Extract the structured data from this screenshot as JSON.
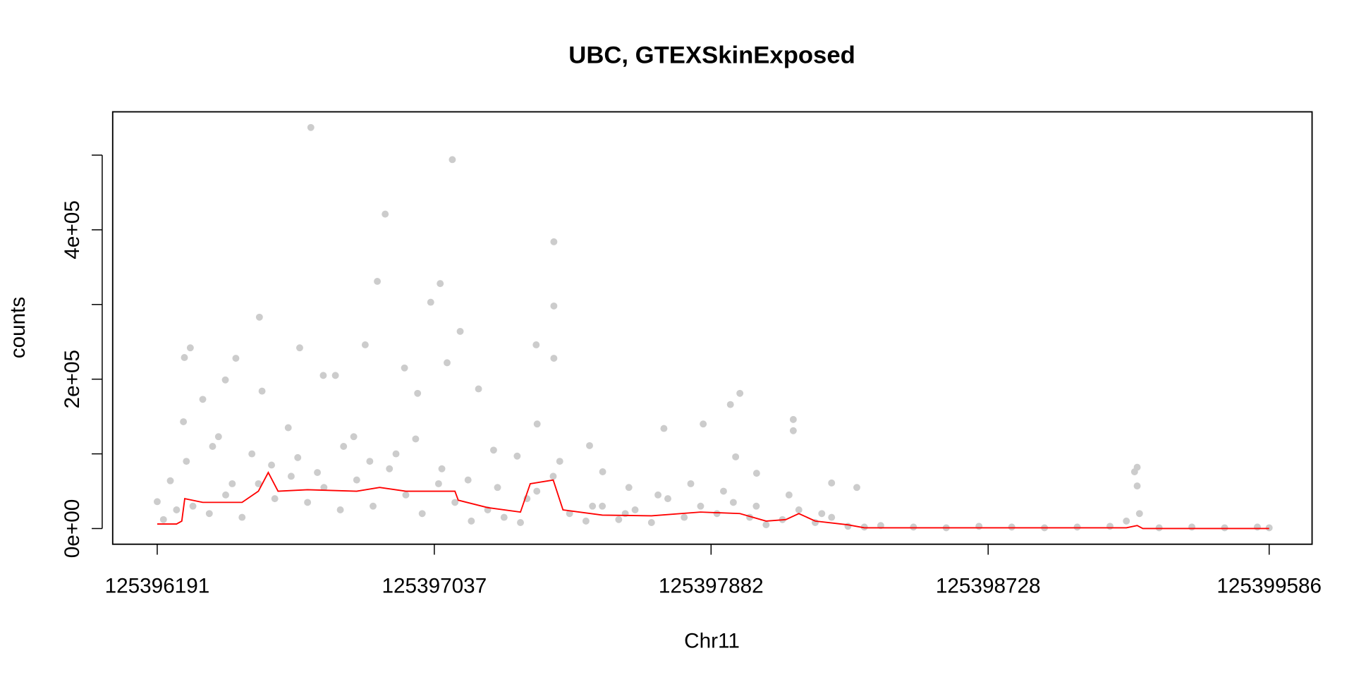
{
  "chart_data": {
    "type": "scatter",
    "title": "UBC, GTEXSkinExposed",
    "xlabel": "Chr11",
    "ylabel": "counts",
    "color": "#cccccc",
    "xlim": [
      125396055,
      125399717
    ],
    "ylim": [
      -21000,
      558000
    ],
    "xticks": [
      125396191,
      125397037,
      125397882,
      125398728,
      125399586
    ],
    "yticks": [
      {
        "value": 0,
        "label": "0e+00"
      },
      {
        "value": 100000,
        "label": null
      },
      {
        "value": 200000,
        "label": "2e+05"
      },
      {
        "value": 300000,
        "label": null
      },
      {
        "value": 400000,
        "label": "4e+05"
      },
      {
        "value": 500000,
        "label": null
      }
    ],
    "x": [
      125396660,
      125397092,
      125396887,
      125397402,
      125396863,
      125397055,
      125397026,
      125397402,
      125396503,
      125397116,
      125396626,
      125396292,
      125396431,
      125396274,
      125396826,
      125397348,
      125397402,
      125397076,
      125396946,
      125396698,
      125396735,
      125396399,
      125397172,
      125397970,
      125397941,
      125398133,
      125398133,
      125397738,
      125397858,
      125397351,
      125396986,
      125396511,
      125396330,
      125396271,
      125399183,
      125399175,
      125399183,
      125398327,
      125398250,
      125398021,
      125397957,
      125397551,
      125397511,
      125397631,
      125397290,
      125397218,
      125396791,
      125396591,
      125396378,
      125396231,
      125396191,
      125396210,
      125396250,
      125396300,
      125396350,
      125396400,
      125396450,
      125396500,
      125396550,
      125396600,
      125396650,
      125396700,
      125396750,
      125396800,
      125396850,
      125396900,
      125396950,
      125397000,
      125397050,
      125397100,
      125397150,
      125397200,
      125397250,
      125397300,
      125397350,
      125397400,
      125397450,
      125397500,
      125397550,
      125397600,
      125397650,
      125397700,
      125397750,
      125397800,
      125397850,
      125397900,
      125397950,
      125398000,
      125398050,
      125398100,
      125398150,
      125398200,
      125398250,
      125398300,
      125398350,
      125398400,
      125398500,
      125398600,
      125398700,
      125398800,
      125398900,
      125399000,
      125399100,
      125399150,
      125399190,
      125399250,
      125399350,
      125399450,
      125399550,
      125399586,
      125396280,
      125396360,
      125396420,
      125396480,
      125396540,
      125396620,
      125396680,
      125396760,
      125396840,
      125396920,
      125396980,
      125397060,
      125397140,
      125397230,
      125397320,
      125397420,
      125397520,
      125397620,
      125397720,
      125397820,
      125397920,
      125398020,
      125398120,
      125398220
    ],
    "values": [
      537000,
      494000,
      421000,
      384000,
      331000,
      328000,
      303000,
      298000,
      283000,
      264000,
      242000,
      242000,
      228000,
      229000,
      246000,
      246000,
      228000,
      222000,
      215000,
      205000,
      205000,
      199000,
      187000,
      181000,
      166000,
      146000,
      131000,
      134000,
      140000,
      140000,
      181000,
      184000,
      173000,
      143000,
      82000,
      76000,
      57000,
      55000,
      61000,
      74000,
      96000,
      76000,
      111000,
      55000,
      97000,
      105000,
      123000,
      135000,
      123000,
      64000,
      36000,
      12000,
      25000,
      30000,
      20000,
      45000,
      15000,
      60000,
      40000,
      70000,
      35000,
      55000,
      25000,
      65000,
      30000,
      80000,
      45000,
      20000,
      60000,
      35000,
      10000,
      25000,
      15000,
      8000,
      50000,
      70000,
      20000,
      10000,
      30000,
      12000,
      25000,
      8000,
      40000,
      15000,
      30000,
      20000,
      35000,
      15000,
      5000,
      12000,
      25000,
      8000,
      15000,
      3000,
      2000,
      4000,
      2000,
      1000,
      3000,
      2000,
      1000,
      2000,
      3000,
      10000,
      20000,
      1000,
      2000,
      1000,
      2000,
      1000,
      90000,
      110000,
      60000,
      100000,
      85000,
      95000,
      75000,
      110000,
      90000,
      100000,
      120000,
      80000,
      65000,
      55000,
      40000,
      90000,
      30000,
      20000,
      45000,
      60000,
      50000,
      30000,
      45000,
      20000
    ],
    "line": {
      "color": "#ff0000",
      "x": [
        125396191,
        125396250,
        125396266,
        125396275,
        125396330,
        125396450,
        125396500,
        125396530,
        125396560,
        125396650,
        125396800,
        125396870,
        125396950,
        125397000,
        125397100,
        125397110,
        125397200,
        125397300,
        125397330,
        125397400,
        125397430,
        125397550,
        125397700,
        125397850,
        125397970,
        125398050,
        125398110,
        125398150,
        125398200,
        125398300,
        125398350,
        125399150,
        125399183,
        125399200,
        125399586
      ],
      "values": [
        6000,
        6000,
        10000,
        40000,
        35000,
        35000,
        50000,
        75000,
        50000,
        52000,
        50000,
        55000,
        50000,
        50000,
        50000,
        38000,
        28000,
        22000,
        60000,
        65000,
        25000,
        18000,
        17000,
        22000,
        20000,
        10000,
        12000,
        20000,
        10000,
        5000,
        1000,
        1000,
        4000,
        0,
        0
      ]
    }
  }
}
